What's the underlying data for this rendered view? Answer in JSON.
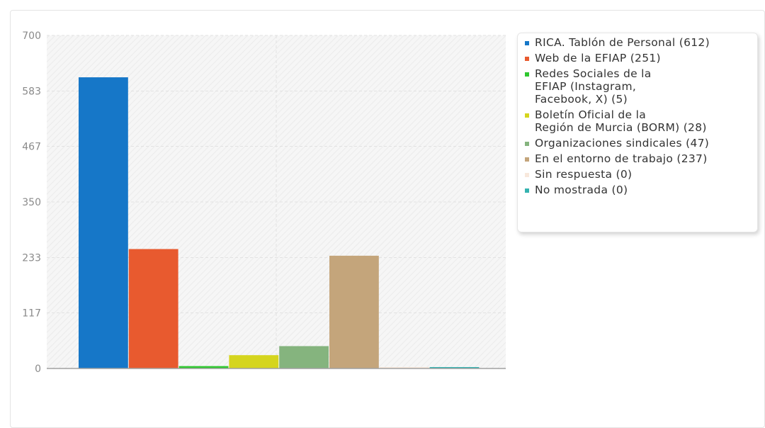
{
  "chart_data": {
    "type": "bar",
    "title": "",
    "xlabel": "",
    "ylabel": "",
    "ylim": [
      0,
      700
    ],
    "yticks": [
      0,
      117,
      233,
      350,
      467,
      583,
      700
    ],
    "grid": true,
    "legend_position": "right",
    "categories": [
      "RICA. Tablón de Personal",
      "Web de la EFIAP",
      "Redes Sociales de la EFIAP (Instagram, Facebook, X)",
      "Boletín Oficial de la Región de Murcia (BORM)",
      "Organizaciones sindicales",
      "En el entorno de trabajo",
      "Sin respuesta",
      "No mostrada"
    ],
    "values": [
      612,
      251,
      5,
      28,
      47,
      237,
      0,
      0
    ],
    "colors": [
      "#1677c8",
      "#e85a2f",
      "#2fc72f",
      "#d5d51e",
      "#85b47e",
      "#c4a57b",
      "#f8e8dc",
      "#35b3b0"
    ],
    "legend": [
      "RICA. Tablón de Personal (612)",
      "Web de la EFIAP (251)",
      "Redes Sociales de la\nEFIAP (Instagram,\nFacebook, X) (5)",
      "Boletín Oficial de la\nRegión de Murcia (BORM) (28)",
      "Organizaciones sindicales (47)",
      "En el entorno de trabajo (237)",
      "Sin respuesta (0)",
      "No mostrada (0)"
    ]
  }
}
